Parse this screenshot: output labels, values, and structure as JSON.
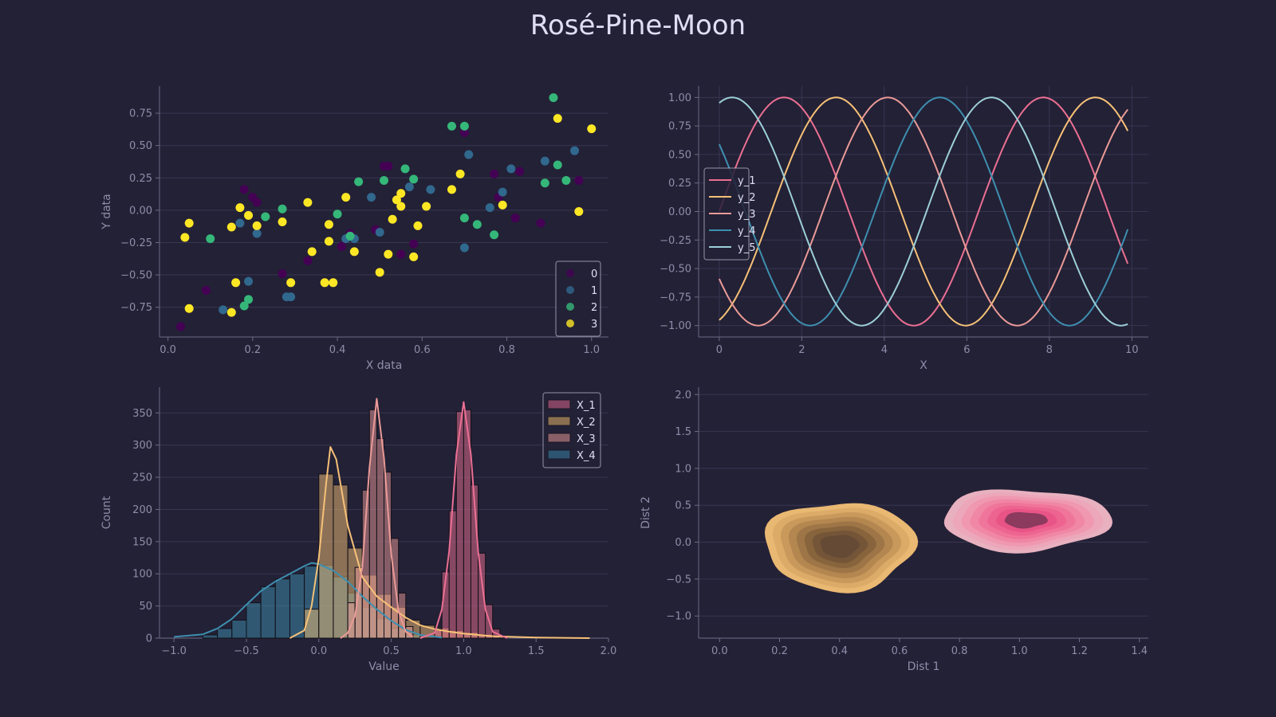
{
  "figure": {
    "title": "Rosé-Pine-Moon"
  },
  "colors": {
    "background": "#232136",
    "grid": "#393552",
    "axis": "#6e6a86",
    "text": "#908caa",
    "legend_text": "#e0def4",
    "legend_border": "#e0def4"
  },
  "chart_data": [
    {
      "type": "scatter",
      "xlabel": "X data",
      "ylabel": "Y data",
      "xlim": [
        -0.02,
        1.04
      ],
      "ylim": [
        -0.98,
        0.96
      ],
      "xticks": [
        0.0,
        0.2,
        0.4,
        0.6,
        0.8,
        1.0
      ],
      "xtick_labels": [
        "0.0",
        "0.2",
        "0.4",
        "0.6",
        "0.8",
        "1.0"
      ],
      "yticks": [
        -0.75,
        -0.5,
        -0.25,
        0.0,
        0.25,
        0.5,
        0.75
      ],
      "ytick_labels": [
        "−0.75",
        "−0.50",
        "−0.25",
        "0.00",
        "0.25",
        "0.50",
        "0.75"
      ],
      "grid": "y",
      "legend_position": "lower-right",
      "series": [
        {
          "name": "0",
          "color": "#440154",
          "points": [
            [
              0.03,
              -0.9
            ],
            [
              0.09,
              -0.62
            ],
            [
              0.18,
              0.16
            ],
            [
              0.2,
              0.1
            ],
            [
              0.21,
              0.06
            ],
            [
              0.27,
              -0.49
            ],
            [
              0.33,
              -0.39
            ],
            [
              0.41,
              -0.28
            ],
            [
              0.43,
              -0.18
            ],
            [
              0.49,
              -0.15
            ],
            [
              0.51,
              0.34
            ],
            [
              0.52,
              0.34
            ],
            [
              0.55,
              -0.34
            ],
            [
              0.58,
              -0.26
            ],
            [
              0.7,
              0.6
            ],
            [
              0.77,
              0.28
            ],
            [
              0.78,
              0.1
            ],
            [
              0.82,
              -0.06
            ],
            [
              0.83,
              0.3
            ],
            [
              0.88,
              -0.1
            ],
            [
              0.97,
              0.23
            ]
          ]
        },
        {
          "name": "1",
          "color": "#31688e",
          "points": [
            [
              0.13,
              -0.77
            ],
            [
              0.17,
              -0.1
            ],
            [
              0.19,
              -0.55
            ],
            [
              0.21,
              -0.18
            ],
            [
              0.28,
              -0.67
            ],
            [
              0.29,
              -0.67
            ],
            [
              0.42,
              -0.22
            ],
            [
              0.44,
              -0.22
            ],
            [
              0.48,
              0.1
            ],
            [
              0.5,
              -0.17
            ],
            [
              0.57,
              0.18
            ],
            [
              0.62,
              0.16
            ],
            [
              0.7,
              -0.29
            ],
            [
              0.71,
              0.43
            ],
            [
              0.76,
              0.02
            ],
            [
              0.79,
              0.14
            ],
            [
              0.81,
              0.32
            ],
            [
              0.89,
              0.38
            ],
            [
              0.96,
              0.46
            ]
          ]
        },
        {
          "name": "2",
          "color": "#35b779",
          "points": [
            [
              0.1,
              -0.22
            ],
            [
              0.18,
              -0.74
            ],
            [
              0.19,
              -0.69
            ],
            [
              0.23,
              -0.05
            ],
            [
              0.27,
              0.01
            ],
            [
              0.4,
              -0.03
            ],
            [
              0.43,
              -0.2
            ],
            [
              0.45,
              0.22
            ],
            [
              0.51,
              0.23
            ],
            [
              0.56,
              0.32
            ],
            [
              0.58,
              0.24
            ],
            [
              0.67,
              0.65
            ],
            [
              0.7,
              0.65
            ],
            [
              0.7,
              -0.06
            ],
            [
              0.73,
              -0.11
            ],
            [
              0.77,
              -0.19
            ],
            [
              0.89,
              0.21
            ],
            [
              0.91,
              0.87
            ],
            [
              0.92,
              0.35
            ],
            [
              0.94,
              0.23
            ]
          ]
        },
        {
          "name": "3",
          "color": "#fde725",
          "points": [
            [
              0.04,
              -0.21
            ],
            [
              0.05,
              -0.76
            ],
            [
              0.05,
              -0.1
            ],
            [
              0.15,
              -0.13
            ],
            [
              0.15,
              -0.79
            ],
            [
              0.16,
              -0.56
            ],
            [
              0.17,
              0.02
            ],
            [
              0.19,
              -0.04
            ],
            [
              0.21,
              -0.12
            ],
            [
              0.27,
              -0.09
            ],
            [
              0.29,
              -0.56
            ],
            [
              0.33,
              0.06
            ],
            [
              0.34,
              -0.32
            ],
            [
              0.37,
              -0.56
            ],
            [
              0.38,
              -0.24
            ],
            [
              0.38,
              -0.11
            ],
            [
              0.39,
              -0.56
            ],
            [
              0.42,
              0.1
            ],
            [
              0.44,
              -0.32
            ],
            [
              0.5,
              -0.48
            ],
            [
              0.52,
              -0.34
            ],
            [
              0.53,
              -0.07
            ],
            [
              0.54,
              0.08
            ],
            [
              0.55,
              0.13
            ],
            [
              0.55,
              0.03
            ],
            [
              0.58,
              -0.36
            ],
            [
              0.59,
              -0.12
            ],
            [
              0.61,
              0.03
            ],
            [
              0.67,
              0.16
            ],
            [
              0.69,
              0.28
            ],
            [
              0.79,
              0.04
            ],
            [
              0.92,
              0.71
            ],
            [
              0.97,
              -0.01
            ],
            [
              1.0,
              0.63
            ]
          ]
        }
      ]
    },
    {
      "type": "line",
      "xlabel": "X",
      "ylabel": "",
      "xlim": [
        -0.5,
        10.4
      ],
      "ylim": [
        -1.1,
        1.1
      ],
      "xticks": [
        0,
        2,
        4,
        6,
        8,
        10
      ],
      "xtick_labels": [
        "0",
        "2",
        "4",
        "6",
        "8",
        "10"
      ],
      "yticks": [
        -1.0,
        -0.75,
        -0.5,
        -0.25,
        0.0,
        0.25,
        0.5,
        0.75,
        1.0
      ],
      "ytick_labels": [
        "−1.00",
        "−0.75",
        "−0.50",
        "−0.25",
        "0.00",
        "0.25",
        "0.50",
        "0.75",
        "1.00"
      ],
      "grid": "both",
      "legend_position": "center-left",
      "x_range": [
        0,
        9.9
      ],
      "formula": "y = sin(x + phase)",
      "series": [
        {
          "name": "y_1",
          "color": "#eb6f92",
          "phase": 0.0
        },
        {
          "name": "y_2",
          "color": "#f6c177",
          "phase": -1.26
        },
        {
          "name": "y_3",
          "color": "#ea9a97",
          "phase": -2.51
        },
        {
          "name": "y_4",
          "color": "#3e8fb0",
          "phase": 2.51
        },
        {
          "name": "y_5",
          "color": "#9ccfd8",
          "phase": 1.26
        }
      ]
    },
    {
      "type": "histogram",
      "xlabel": "Value",
      "ylabel": "Count",
      "xlim": [
        -1.1,
        2.0
      ],
      "ylim": [
        0,
        390
      ],
      "xticks": [
        -1.0,
        -0.5,
        0.0,
        0.5,
        1.0,
        1.5,
        2.0
      ],
      "xtick_labels": [
        "−1.0",
        "−0.5",
        "0.0",
        "0.5",
        "1.0",
        "1.5",
        "2.0"
      ],
      "yticks": [
        0,
        50,
        100,
        150,
        200,
        250,
        300,
        350
      ],
      "ytick_labels": [
        "0",
        "50",
        "100",
        "150",
        "200",
        "250",
        "300",
        "350"
      ],
      "grid": "y",
      "legend_position": "top-right",
      "series": [
        {
          "name": "X_4",
          "color": "#3e8fb0",
          "fill": "#2d5470",
          "bin_width": 0.1,
          "bins_left": [
            -0.8,
            -0.7,
            -0.6,
            -0.5,
            -0.4,
            -0.3,
            -0.2,
            -0.1,
            0.0,
            0.1,
            0.2,
            0.3,
            0.4,
            0.5,
            0.6
          ],
          "counts": [
            5,
            15,
            28,
            55,
            80,
            92,
            100,
            112,
            113,
            95,
            70,
            48,
            30,
            15,
            5
          ],
          "kde": [
            [
              -1.0,
              2
            ],
            [
              -0.8,
              6
            ],
            [
              -0.7,
              15
            ],
            [
              -0.6,
              30
            ],
            [
              -0.5,
              52
            ],
            [
              -0.4,
              73
            ],
            [
              -0.3,
              88
            ],
            [
              -0.2,
              100
            ],
            [
              -0.1,
              112
            ],
            [
              -0.05,
              117
            ],
            [
              0.0,
              115
            ],
            [
              0.1,
              105
            ],
            [
              0.2,
              88
            ],
            [
              0.3,
              65
            ],
            [
              0.4,
              45
            ],
            [
              0.5,
              27
            ],
            [
              0.6,
              13
            ],
            [
              0.7,
              5
            ],
            [
              0.85,
              1
            ]
          ]
        },
        {
          "name": "X_2",
          "color": "#f6c177",
          "fill": "#8a7050",
          "bin_width": 0.1,
          "bins_left": [
            -0.1,
            0.0,
            0.1,
            0.2,
            0.3,
            0.4,
            0.5,
            0.6,
            0.7,
            0.8,
            0.9,
            1.0,
            1.1,
            1.2
          ],
          "counts": [
            45,
            255,
            238,
            140,
            98,
            68,
            48,
            28,
            20,
            16,
            12,
            9,
            6,
            3
          ],
          "kde": [
            [
              -0.2,
              0
            ],
            [
              -0.1,
              12
            ],
            [
              -0.05,
              50
            ],
            [
              0.0,
              125
            ],
            [
              0.05,
              240
            ],
            [
              0.08,
              297
            ],
            [
              0.12,
              278
            ],
            [
              0.2,
              175
            ],
            [
              0.3,
              95
            ],
            [
              0.4,
              65
            ],
            [
              0.5,
              48
            ],
            [
              0.6,
              32
            ],
            [
              0.7,
              20
            ],
            [
              0.8,
              14
            ],
            [
              0.9,
              10
            ],
            [
              1.0,
              7
            ],
            [
              1.2,
              3
            ],
            [
              1.5,
              1
            ],
            [
              1.87,
              0
            ]
          ]
        },
        {
          "name": "X_3",
          "color": "#ea9a97",
          "fill": "#8a6068",
          "bin_width": 0.05,
          "bins_left": [
            0.2,
            0.25,
            0.3,
            0.35,
            0.4,
            0.45,
            0.5,
            0.55,
            0.6
          ],
          "counts": [
            55,
            110,
            230,
            355,
            310,
            258,
            155,
            70,
            18
          ],
          "kde": [
            [
              0.15,
              0
            ],
            [
              0.2,
              8
            ],
            [
              0.25,
              35
            ],
            [
              0.3,
              110
            ],
            [
              0.35,
              265
            ],
            [
              0.4,
              372
            ],
            [
              0.45,
              280
            ],
            [
              0.5,
              130
            ],
            [
              0.55,
              42
            ],
            [
              0.6,
              10
            ],
            [
              0.65,
              2
            ]
          ]
        },
        {
          "name": "X_1",
          "color": "#eb6f92",
          "fill": "#834562",
          "bin_width": 0.05,
          "bins_left": [
            0.8,
            0.85,
            0.9,
            0.95,
            1.0,
            1.05,
            1.1,
            1.15,
            1.2
          ],
          "counts": [
            14,
            103,
            198,
            352,
            355,
            238,
            132,
            52,
            14
          ],
          "kde": [
            [
              0.7,
              0
            ],
            [
              0.8,
              8
            ],
            [
              0.85,
              45
            ],
            [
              0.9,
              135
            ],
            [
              0.95,
              285
            ],
            [
              1.0,
              367
            ],
            [
              1.05,
              285
            ],
            [
              1.1,
              135
            ],
            [
              1.15,
              45
            ],
            [
              1.2,
              10
            ],
            [
              1.3,
              0
            ]
          ]
        }
      ]
    },
    {
      "type": "kde-contour",
      "xlabel": "Dist 1",
      "ylabel": "Dist 2",
      "xlim": [
        -0.07,
        1.43
      ],
      "ylim": [
        -1.3,
        2.1
      ],
      "xticks": [
        0.0,
        0.2,
        0.4,
        0.6,
        0.8,
        1.0,
        1.2,
        1.4
      ],
      "xtick_labels": [
        "0.0",
        "0.2",
        "0.4",
        "0.6",
        "0.8",
        "1.0",
        "1.2",
        "1.4"
      ],
      "yticks": [
        -1.0,
        -0.5,
        0.0,
        0.5,
        1.0,
        1.5,
        2.0
      ],
      "ytick_labels": [
        "−1.0",
        "−0.5",
        "0.0",
        "0.5",
        "1.0",
        "1.5",
        "2.0"
      ],
      "grid": "y",
      "blobs": [
        {
          "center": [
            0.4,
            -0.05
          ],
          "radius": [
            0.25,
            0.6
          ],
          "colors": [
            "#e9b872",
            "#dcab68",
            "#c9995c",
            "#b48750",
            "#9e7546",
            "#88643d",
            "#745538",
            "#654a35"
          ]
        },
        {
          "center": [
            1.02,
            0.3
          ],
          "radius": [
            0.28,
            0.42
          ],
          "colors": [
            "#e8b1c0",
            "#eca7ba",
            "#ef98b0",
            "#f087a5",
            "#f0759a",
            "#ee6490",
            "#e95487",
            "#8c3a5e"
          ]
        }
      ]
    }
  ]
}
